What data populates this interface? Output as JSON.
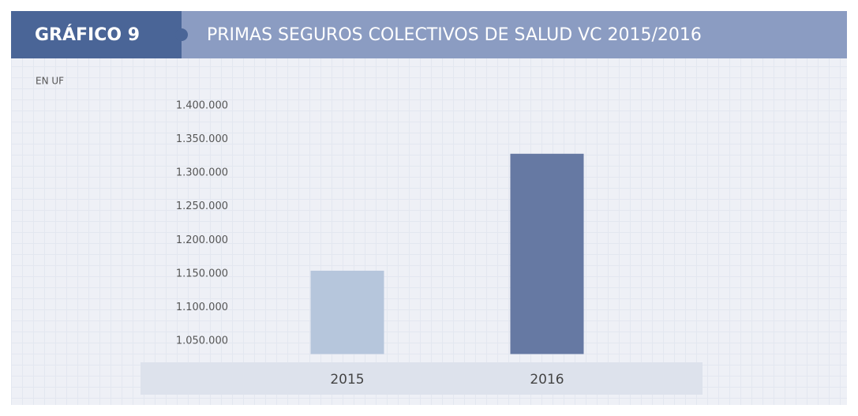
{
  "chart_data": {
    "type": "bar",
    "label": "GRÁFICO 9",
    "title": "PRIMAS SEGUROS COLECTIVOS DE SALUD VC 2015/2016",
    "subtitle": "EN UF",
    "categories": [
      "2015",
      "2016"
    ],
    "values": [
      1164000,
      1338000
    ],
    "colors": [
      "#b6c6dc",
      "#6679a3"
    ],
    "ylim": [
      1040000,
      1400000
    ],
    "yticks": [
      {
        "value": 1050000,
        "label": "1.050.000"
      },
      {
        "value": 1100000,
        "label": "1.100.000"
      },
      {
        "value": 1150000,
        "label": "1.150.000"
      },
      {
        "value": 1200000,
        "label": "1.200.000"
      },
      {
        "value": 1250000,
        "label": "1.250.000"
      },
      {
        "value": 1300000,
        "label": "1.300.000"
      },
      {
        "value": 1350000,
        "label": "1.350.000"
      },
      {
        "value": 1400000,
        "label": "1.400.000"
      }
    ],
    "grid": false
  }
}
